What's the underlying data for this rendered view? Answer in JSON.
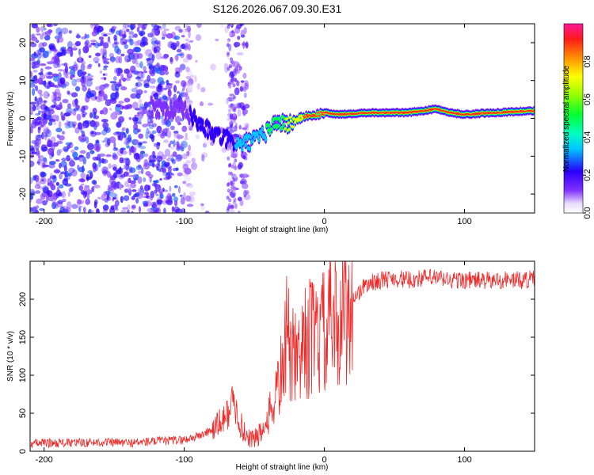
{
  "title": "S126.2026.067.09.30.E31",
  "chart_data": [
    {
      "type": "heatmap",
      "name": "spectrogram",
      "xlabel": "Height of straight line (km)",
      "ylabel": "Frequency (Hz)",
      "xlim": [
        -210,
        150
      ],
      "ylim": [
        -25,
        25
      ],
      "xticks": [
        -200,
        -100,
        0,
        100
      ],
      "yticks": [
        -20,
        -10,
        0,
        10,
        20
      ],
      "carrier_track": {
        "x": [
          -130,
          -100,
          -80,
          -60,
          -45,
          -35,
          -25,
          -15,
          -5,
          0,
          10,
          30,
          60,
          80,
          90,
          100,
          120,
          150
        ],
        "y": [
          3,
          2,
          -4,
          -7,
          -5,
          -1,
          -1.5,
          0.5,
          1,
          1.5,
          1,
          1.5,
          1.5,
          2.5,
          1.5,
          1,
          1.5,
          2
        ],
        "intensity": [
          0.05,
          0.15,
          0.25,
          0.3,
          0.4,
          0.55,
          0.7,
          0.85,
          0.9,
          0.95,
          0.95,
          0.9,
          0.9,
          0.95,
          0.85,
          0.9,
          0.9,
          0.88
        ]
      },
      "colorbar": {
        "label": "Normalized spectral amplitude",
        "range": [
          0,
          1
        ],
        "ticks": [
          "0.0",
          "0.2",
          "0.4",
          "0.6",
          "0.8"
        ],
        "tick_values": [
          0,
          0.2,
          0.4,
          0.6,
          0.8
        ]
      }
    },
    {
      "type": "line",
      "name": "snr",
      "xlabel": "Height of straight line (km)",
      "ylabel": "SNR (10 * v/v)",
      "xlim": [
        -210,
        150
      ],
      "ylim": [
        0,
        250
      ],
      "xticks": [
        -200,
        -100,
        0,
        100
      ],
      "yticks": [
        0,
        50,
        100,
        150,
        200
      ],
      "color": "#ee2a2a",
      "series": [
        {
          "name": "SNR",
          "x": [
            -210,
            -200,
            -180,
            -160,
            -140,
            -120,
            -100,
            -90,
            -80,
            -70,
            -66,
            -62,
            -58,
            -50,
            -45,
            -40,
            -35,
            -30,
            -27,
            -24,
            -20,
            -15,
            -10,
            -5,
            0,
            5,
            10,
            15,
            20,
            25,
            30,
            40,
            50,
            60,
            70,
            80,
            90,
            100,
            110,
            120,
            130,
            140,
            150
          ],
          "y": [
            10,
            11,
            11,
            12,
            11,
            13,
            15,
            20,
            28,
            45,
            65,
            50,
            25,
            15,
            25,
            45,
            70,
            110,
            150,
            130,
            115,
            140,
            150,
            145,
            155,
            165,
            170,
            185,
            200,
            210,
            220,
            225,
            228,
            225,
            228,
            228,
            225,
            225,
            225,
            224,
            226,
            225,
            227
          ]
        }
      ]
    }
  ]
}
